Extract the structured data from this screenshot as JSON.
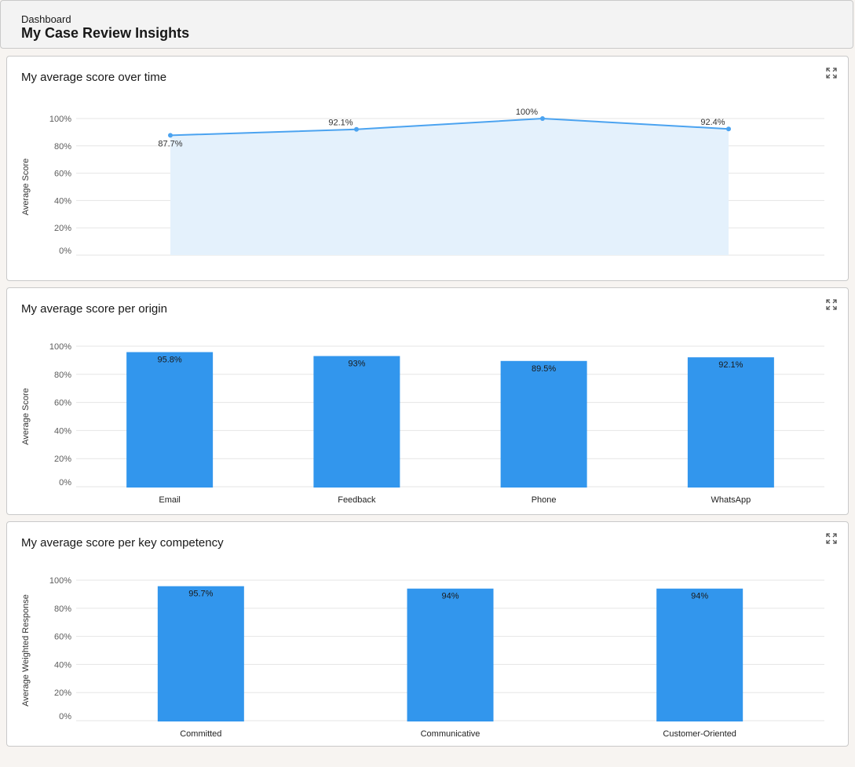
{
  "header": {
    "breadcrumb": "Dashboard",
    "title": "My Case Review Insights"
  },
  "icons": {
    "expand": "expand-icon"
  },
  "colors": {
    "bar": "#3296ed",
    "line": "#4ba3f0",
    "area": "#e4f1fc",
    "grid": "#e5e5e5",
    "axis_text": "#5c5c5c"
  },
  "chart_data": [
    {
      "type": "area",
      "title": "My average score over time",
      "ylabel": "Average Score",
      "ylim": [
        0,
        100
      ],
      "yticks": [
        "0%",
        "20%",
        "40%",
        "60%",
        "80%",
        "100%"
      ],
      "grid": true,
      "series": [
        {
          "values": [
            87.7,
            92.1,
            100,
            92.4
          ],
          "labels": [
            "87.7%",
            "92.1%",
            "100%",
            "92.4%"
          ]
        }
      ]
    },
    {
      "type": "bar",
      "title": "My average score per origin",
      "ylabel": "Average Score",
      "ylim": [
        0,
        100
      ],
      "yticks": [
        "0%",
        "20%",
        "40%",
        "60%",
        "80%",
        "100%"
      ],
      "grid": true,
      "categories": [
        "Email",
        "Feedback",
        "Phone",
        "WhatsApp"
      ],
      "values": [
        95.8,
        93,
        89.5,
        92.1
      ],
      "labels": [
        "95.8%",
        "93%",
        "89.5%",
        "92.1%"
      ]
    },
    {
      "type": "bar",
      "title": "My average score per key competency",
      "ylabel": "Average Weighted Response",
      "ylim": [
        0,
        100
      ],
      "yticks": [
        "0%",
        "20%",
        "40%",
        "60%",
        "80%",
        "100%"
      ],
      "grid": true,
      "categories": [
        "Committed",
        "Communicative",
        "Customer-Oriented"
      ],
      "values": [
        95.7,
        94,
        94
      ],
      "labels": [
        "95.7%",
        "94%",
        "94%"
      ]
    }
  ]
}
